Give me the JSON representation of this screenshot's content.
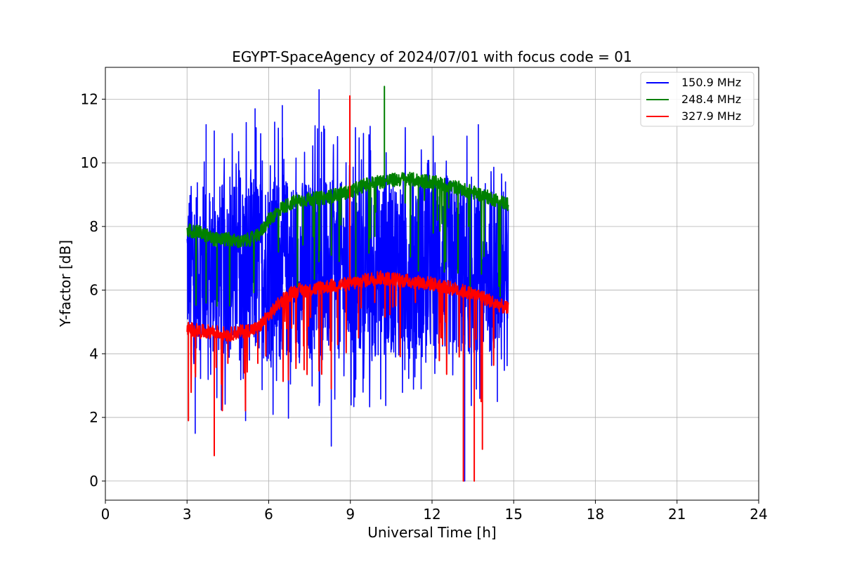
{
  "chart_data": {
    "type": "line",
    "title": "EGYPT-SpaceAgency of 2024/07/01 with focus code = 01",
    "xlabel": "Universal Time [h]",
    "ylabel": "Y-factor [dB]",
    "xlim": [
      0,
      24
    ],
    "ylim": [
      -0.6,
      13.0
    ],
    "xticks": [
      0,
      3,
      6,
      9,
      12,
      15,
      18,
      21,
      24
    ],
    "yticks": [
      0,
      2,
      4,
      6,
      8,
      10,
      12
    ],
    "grid": true,
    "legend_position": "top-right",
    "series": [
      {
        "name": "150.9 MHz",
        "color": "#0000ff",
        "x_range": [
          3.0,
          14.8
        ],
        "baseline": [
          [
            3.0,
            6.8
          ],
          [
            4.5,
            6.6
          ],
          [
            6.0,
            6.7
          ],
          [
            7.5,
            6.6
          ],
          [
            9.0,
            6.6
          ],
          [
            10.5,
            6.8
          ],
          [
            12.0,
            6.8
          ],
          [
            13.5,
            6.6
          ],
          [
            14.8,
            6.5
          ]
        ],
        "spread": [
          [
            3.0,
            2.6
          ],
          [
            6.0,
            3.0
          ],
          [
            9.0,
            2.8
          ],
          [
            12.0,
            3.0
          ],
          [
            14.8,
            2.4
          ]
        ],
        "spikes": [
          [
            3.3,
            1.5
          ],
          [
            3.7,
            11.2
          ],
          [
            4.0,
            11.0
          ],
          [
            5.15,
            1.9
          ],
          [
            5.5,
            11.7
          ],
          [
            6.5,
            11.8
          ],
          [
            7.85,
            12.3
          ],
          [
            8.3,
            1.1
          ],
          [
            9.2,
            3.2
          ],
          [
            11.0,
            3.5
          ],
          [
            11.6,
            2.9
          ],
          [
            13.2,
            0.0
          ],
          [
            13.7,
            11.2
          ],
          [
            14.4,
            2.5
          ],
          [
            14.7,
            9.4
          ]
        ]
      },
      {
        "name": "248.4 MHz",
        "color": "#008000",
        "x_range": [
          3.0,
          14.8
        ],
        "baseline": [
          [
            3.0,
            7.9
          ],
          [
            3.5,
            7.8
          ],
          [
            4.0,
            7.6
          ],
          [
            4.5,
            7.6
          ],
          [
            5.0,
            7.5
          ],
          [
            5.6,
            7.7
          ],
          [
            6.0,
            8.2
          ],
          [
            6.5,
            8.6
          ],
          [
            7.0,
            8.8
          ],
          [
            8.0,
            8.9
          ],
          [
            9.0,
            9.1
          ],
          [
            9.5,
            9.3
          ],
          [
            10.0,
            9.4
          ],
          [
            11.0,
            9.5
          ],
          [
            12.0,
            9.4
          ],
          [
            13.0,
            9.2
          ],
          [
            13.8,
            9.0
          ],
          [
            14.8,
            8.7
          ]
        ],
        "spikes": [
          [
            10.25,
            12.4
          ],
          [
            3.7,
            5.6
          ],
          [
            4.1,
            5.5
          ],
          [
            8.3,
            7.1
          ],
          [
            9.2,
            6.2
          ],
          [
            11.5,
            6.6
          ],
          [
            12.5,
            6.9
          ],
          [
            13.4,
            5.7
          ],
          [
            14.5,
            5.8
          ]
        ]
      },
      {
        "name": "327.9 MHz",
        "color": "#ff0000",
        "x_range": [
          3.0,
          14.8
        ],
        "baseline": [
          [
            3.0,
            4.8
          ],
          [
            3.5,
            4.7
          ],
          [
            4.0,
            4.7
          ],
          [
            4.5,
            4.6
          ],
          [
            5.0,
            4.7
          ],
          [
            5.6,
            4.8
          ],
          [
            6.0,
            5.2
          ],
          [
            6.5,
            5.7
          ],
          [
            7.0,
            6.0
          ],
          [
            7.5,
            6.0
          ],
          [
            8.0,
            6.1
          ],
          [
            9.0,
            6.2
          ],
          [
            9.5,
            6.3
          ],
          [
            10.0,
            6.4
          ],
          [
            11.0,
            6.3
          ],
          [
            12.0,
            6.2
          ],
          [
            13.0,
            6.0
          ],
          [
            13.8,
            5.8
          ],
          [
            14.8,
            5.4
          ]
        ],
        "spikes": [
          [
            3.05,
            1.9
          ],
          [
            4.0,
            0.8
          ],
          [
            8.98,
            12.1
          ],
          [
            13.15,
            0.0
          ],
          [
            13.55,
            0.0
          ],
          [
            13.8,
            2.5
          ],
          [
            13.85,
            1.0
          ],
          [
            3.3,
            3.4
          ],
          [
            4.5,
            3.7
          ],
          [
            5.1,
            3.4
          ],
          [
            5.6,
            3.7
          ],
          [
            7.3,
            3.5
          ],
          [
            8.3,
            2.9
          ],
          [
            9.3,
            4.5
          ],
          [
            12.5,
            5.0
          ]
        ]
      }
    ]
  }
}
